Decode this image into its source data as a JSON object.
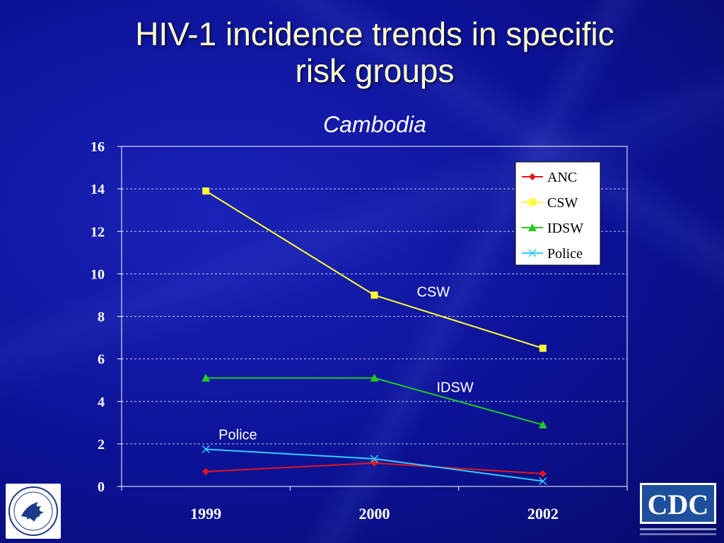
{
  "header": {
    "title_line1": "HIV-1 incidence trends in specific",
    "title_line2": "risk groups",
    "subtitle": "Cambodia"
  },
  "chart_data": {
    "type": "line",
    "categories": [
      "1999",
      "2000",
      "2002"
    ],
    "ylim": [
      0,
      16
    ],
    "yticks": [
      0,
      2,
      4,
      6,
      8,
      10,
      12,
      14,
      16
    ],
    "grid": true,
    "legend_position": "top-right",
    "series": [
      {
        "name": "ANC",
        "values": [
          0.7,
          1.1,
          0.6
        ],
        "color": "#e8141c",
        "marker": "diamond"
      },
      {
        "name": "CSW",
        "values": [
          13.9,
          9.0,
          6.5
        ],
        "color": "#ffff33",
        "marker": "square"
      },
      {
        "name": "IDSW",
        "values": [
          5.1,
          5.1,
          2.9
        ],
        "color": "#22cc22",
        "marker": "triangle"
      },
      {
        "name": "Police",
        "values": [
          1.75,
          1.3,
          0.25
        ],
        "color": "#33ccff",
        "marker": "x"
      }
    ],
    "annotations": [
      {
        "text": "CSW",
        "series": "CSW",
        "at_category": "2000"
      },
      {
        "text": "IDSW",
        "series": "IDSW",
        "at_category": "2000"
      },
      {
        "text": "Police",
        "series": "Police",
        "at_category": "1999"
      }
    ]
  },
  "logos": {
    "left_icon": "hhs-eagle-seal-icon",
    "right_icon": "cdc-logo-icon",
    "right_text": "CDC"
  }
}
